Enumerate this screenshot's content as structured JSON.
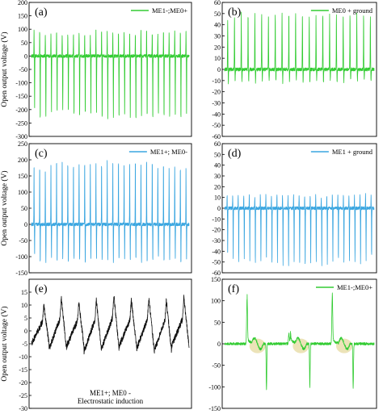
{
  "chart_data": [
    {
      "id": "a",
      "type": "line",
      "panel_label": "(a)",
      "ylabel": "Open output voltage (V)",
      "ylim": [
        -300,
        200
      ],
      "yticks": [
        -300,
        -250,
        -200,
        -150,
        -100,
        -50,
        0,
        50,
        100,
        150,
        200
      ],
      "legend_position": "top-right",
      "series": [
        {
          "name": "ME1-;ME0+",
          "color": "#33cc33",
          "pulses": 28,
          "baseline": 0,
          "noise": 6,
          "pos_peaks": [
            100,
            95,
            85,
            85,
            90,
            80,
            80,
            85,
            90,
            85,
            80,
            100,
            95,
            100,
            90,
            85,
            95,
            90,
            80,
            100,
            95,
            80,
            85,
            90,
            95,
            100,
            95,
            100
          ],
          "neg_peaks": [
            -210,
            -245,
            -240,
            -220,
            -220,
            -215,
            -215,
            -230,
            -240,
            -220,
            -225,
            -230,
            -240,
            -250,
            -245,
            -240,
            -230,
            -245,
            -250,
            -240,
            -230,
            -240,
            -230,
            -235,
            -240,
            -235,
            -240,
            -235
          ]
        }
      ]
    },
    {
      "id": "b",
      "type": "line",
      "panel_label": "(b)",
      "ylabel": "",
      "ylim": [
        -60,
        60
      ],
      "yticks": [
        -60,
        -50,
        -40,
        -30,
        -20,
        -10,
        0,
        10,
        20,
        30,
        40,
        50,
        60
      ],
      "legend_position": "top-right",
      "series": [
        {
          "name": "ME0 + ground",
          "color": "#33cc33",
          "pulses": 22,
          "baseline": 0,
          "noise": 1.5,
          "pos_peaks": [
            45,
            48,
            50,
            48,
            50,
            50,
            49,
            50,
            51,
            50,
            49,
            50,
            48,
            50,
            50,
            49,
            48,
            50,
            49,
            50,
            48,
            47
          ],
          "neg_peaks": [
            -12,
            -10,
            -11,
            -10,
            -12,
            -10,
            -11,
            -10,
            -12,
            -11,
            -10,
            -11,
            -12,
            -10,
            -11,
            -10,
            -12,
            -11,
            -10,
            -11,
            -10,
            -11
          ]
        }
      ]
    },
    {
      "id": "c",
      "type": "line",
      "panel_label": "(c)",
      "ylabel": "Open output voltage (V)",
      "ylim": [
        -150,
        250
      ],
      "yticks": [
        -150,
        -100,
        -50,
        0,
        50,
        100,
        150,
        200,
        250
      ],
      "legend_position": "top-right",
      "series": [
        {
          "name": "ME1+; ME0-",
          "color": "#3aa6e0",
          "pulses": 28,
          "baseline": 0,
          "noise": 5,
          "pos_peaks": [
            190,
            185,
            180,
            195,
            200,
            205,
            195,
            190,
            200,
            200,
            205,
            200,
            195,
            210,
            205,
            200,
            195,
            200,
            205,
            195,
            210,
            200,
            190,
            195,
            185,
            190,
            180,
            185
          ],
          "neg_peaks": [
            -100,
            -120,
            -125,
            -110,
            -120,
            -115,
            -120,
            -110,
            -115,
            -125,
            -120,
            -110,
            -115,
            -120,
            -125,
            -110,
            -115,
            -120,
            -110,
            -125,
            -120,
            -115,
            -110,
            -120,
            -115,
            -110,
            -125,
            -120
          ]
        }
      ]
    },
    {
      "id": "d",
      "type": "line",
      "panel_label": "(d)",
      "ylabel": "",
      "ylim": [
        -60,
        60
      ],
      "yticks": [
        -60,
        -50,
        -40,
        -30,
        -20,
        -10,
        0,
        10,
        20,
        30,
        40,
        50,
        60
      ],
      "legend_position": "top-right",
      "series": [
        {
          "name": "ME1 + ground",
          "color": "#3aa6e0",
          "pulses": 27,
          "baseline": 0,
          "noise": 1.5,
          "pos_peaks": [
            12,
            12,
            11,
            12,
            12,
            11,
            12,
            12,
            11,
            12,
            12,
            11,
            12,
            12,
            11,
            12,
            12,
            11,
            12,
            12,
            13,
            12,
            13,
            12,
            13,
            14,
            12
          ],
          "neg_peaks": [
            -45,
            -48,
            -50,
            -48,
            -50,
            -52,
            -50,
            -48,
            -52,
            -50,
            -52,
            -53,
            -50,
            -52,
            -55,
            -52,
            -50,
            -53,
            -52,
            -50,
            -48,
            -52,
            -50,
            -50,
            -52,
            -50,
            -45
          ]
        }
      ]
    },
    {
      "id": "e",
      "type": "line",
      "panel_label": "(e)",
      "ylabel": "Open output voltage (V)",
      "ylim": [
        -30,
        20
      ],
      "yticks": [
        -30,
        -25,
        -20,
        -15,
        -10,
        -5,
        0,
        5,
        10,
        15
      ],
      "legend_position": "bottom-center",
      "annotation": [
        "ME1+;   ME0 -",
        "Electrostatic induction"
      ],
      "series": [
        {
          "name": "",
          "color": "#111111",
          "pulses": 9,
          "baseline": 0,
          "noise": 1.2,
          "pos_peaks": [
            10,
            13,
            11,
            12,
            14,
            12,
            13,
            12,
            13
          ],
          "neg_peaks": [
            -5,
            -7,
            -6,
            -8,
            -7,
            -6,
            -7,
            -8,
            -6
          ]
        }
      ]
    },
    {
      "id": "f",
      "type": "line",
      "panel_label": "(f)",
      "ylabel": "",
      "ylim": [
        -150,
        150
      ],
      "yticks": [
        -150,
        -100,
        -50,
        0,
        50,
        100,
        150
      ],
      "legend_position": "top-right",
      "series": [
        {
          "name": "ME1-;ME0+",
          "color": "#33cc33",
          "pulses": 4,
          "baseline": 0,
          "noise": 3,
          "pos_peaks": [
            105,
            15,
            110,
            105
          ],
          "neg_peaks": [
            -108,
            -100,
            -105,
            -88
          ]
        }
      ]
    }
  ]
}
